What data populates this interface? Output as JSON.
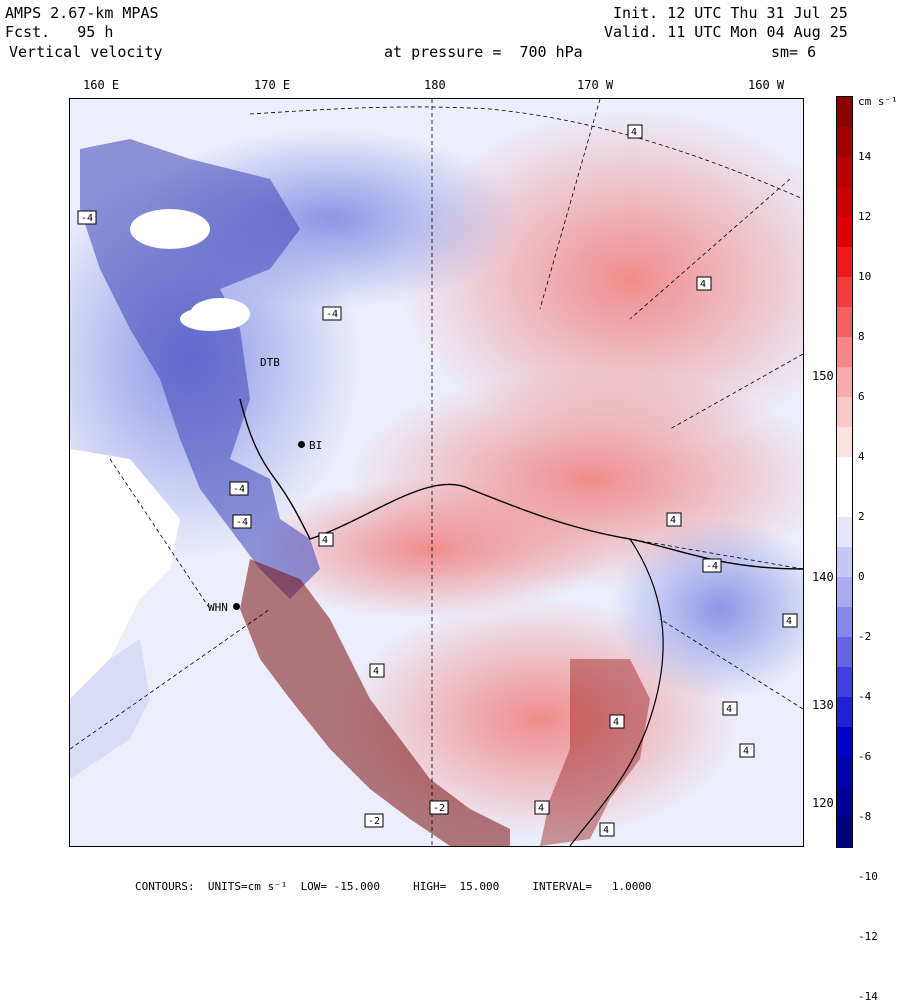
{
  "header": {
    "model": "AMPS 2.67-km MPAS",
    "forecast": "Fcst.   95 h",
    "field": "Vertical velocity",
    "level": "at pressure =  700 hPa",
    "init": "Init. 12 UTC Thu 31 Jul 25",
    "valid": "Valid. 11 UTC Mon 04 Aug 25",
    "smoothing": "sm= 6"
  },
  "longitude_labels": [
    "160 E",
    "170 E",
    "180",
    "170 W",
    "160 W"
  ],
  "latitude_labels": [
    "150 W",
    "140 W",
    "130 W",
    "120 W"
  ],
  "stations": [
    "DTB",
    "BI",
    "WHN"
  ],
  "colorbar": {
    "units": "cm s⁻¹",
    "ticks": [
      "14",
      "12",
      "10",
      "8",
      "6",
      "4",
      "2",
      "0",
      "-2",
      "-4",
      "-6",
      "-8",
      "-10",
      "-12",
      "-14"
    ],
    "colors": [
      "#8b0000",
      "#a00000",
      "#b80000",
      "#cc0000",
      "#e00000",
      "#f01818",
      "#f43c3c",
      "#f56060",
      "#f68888",
      "#f8aaaa",
      "#fac8c8",
      "#fde2e2",
      "#ffffff",
      "#ffffff",
      "#e6e6fa",
      "#c8c8f4",
      "#aaaaf0",
      "#8888ea",
      "#6464e4",
      "#4040e0",
      "#2020d8",
      "#0000cc",
      "#0000b0",
      "#000096",
      "#00007c"
    ],
    "low_color": "#00007c",
    "high_color": "#8b0000"
  },
  "footer": "CONTOURS:  UNITS=cm s⁻¹  LOW= -15.000     HIGH=  15.000     INTERVAL=   1.0000"
}
